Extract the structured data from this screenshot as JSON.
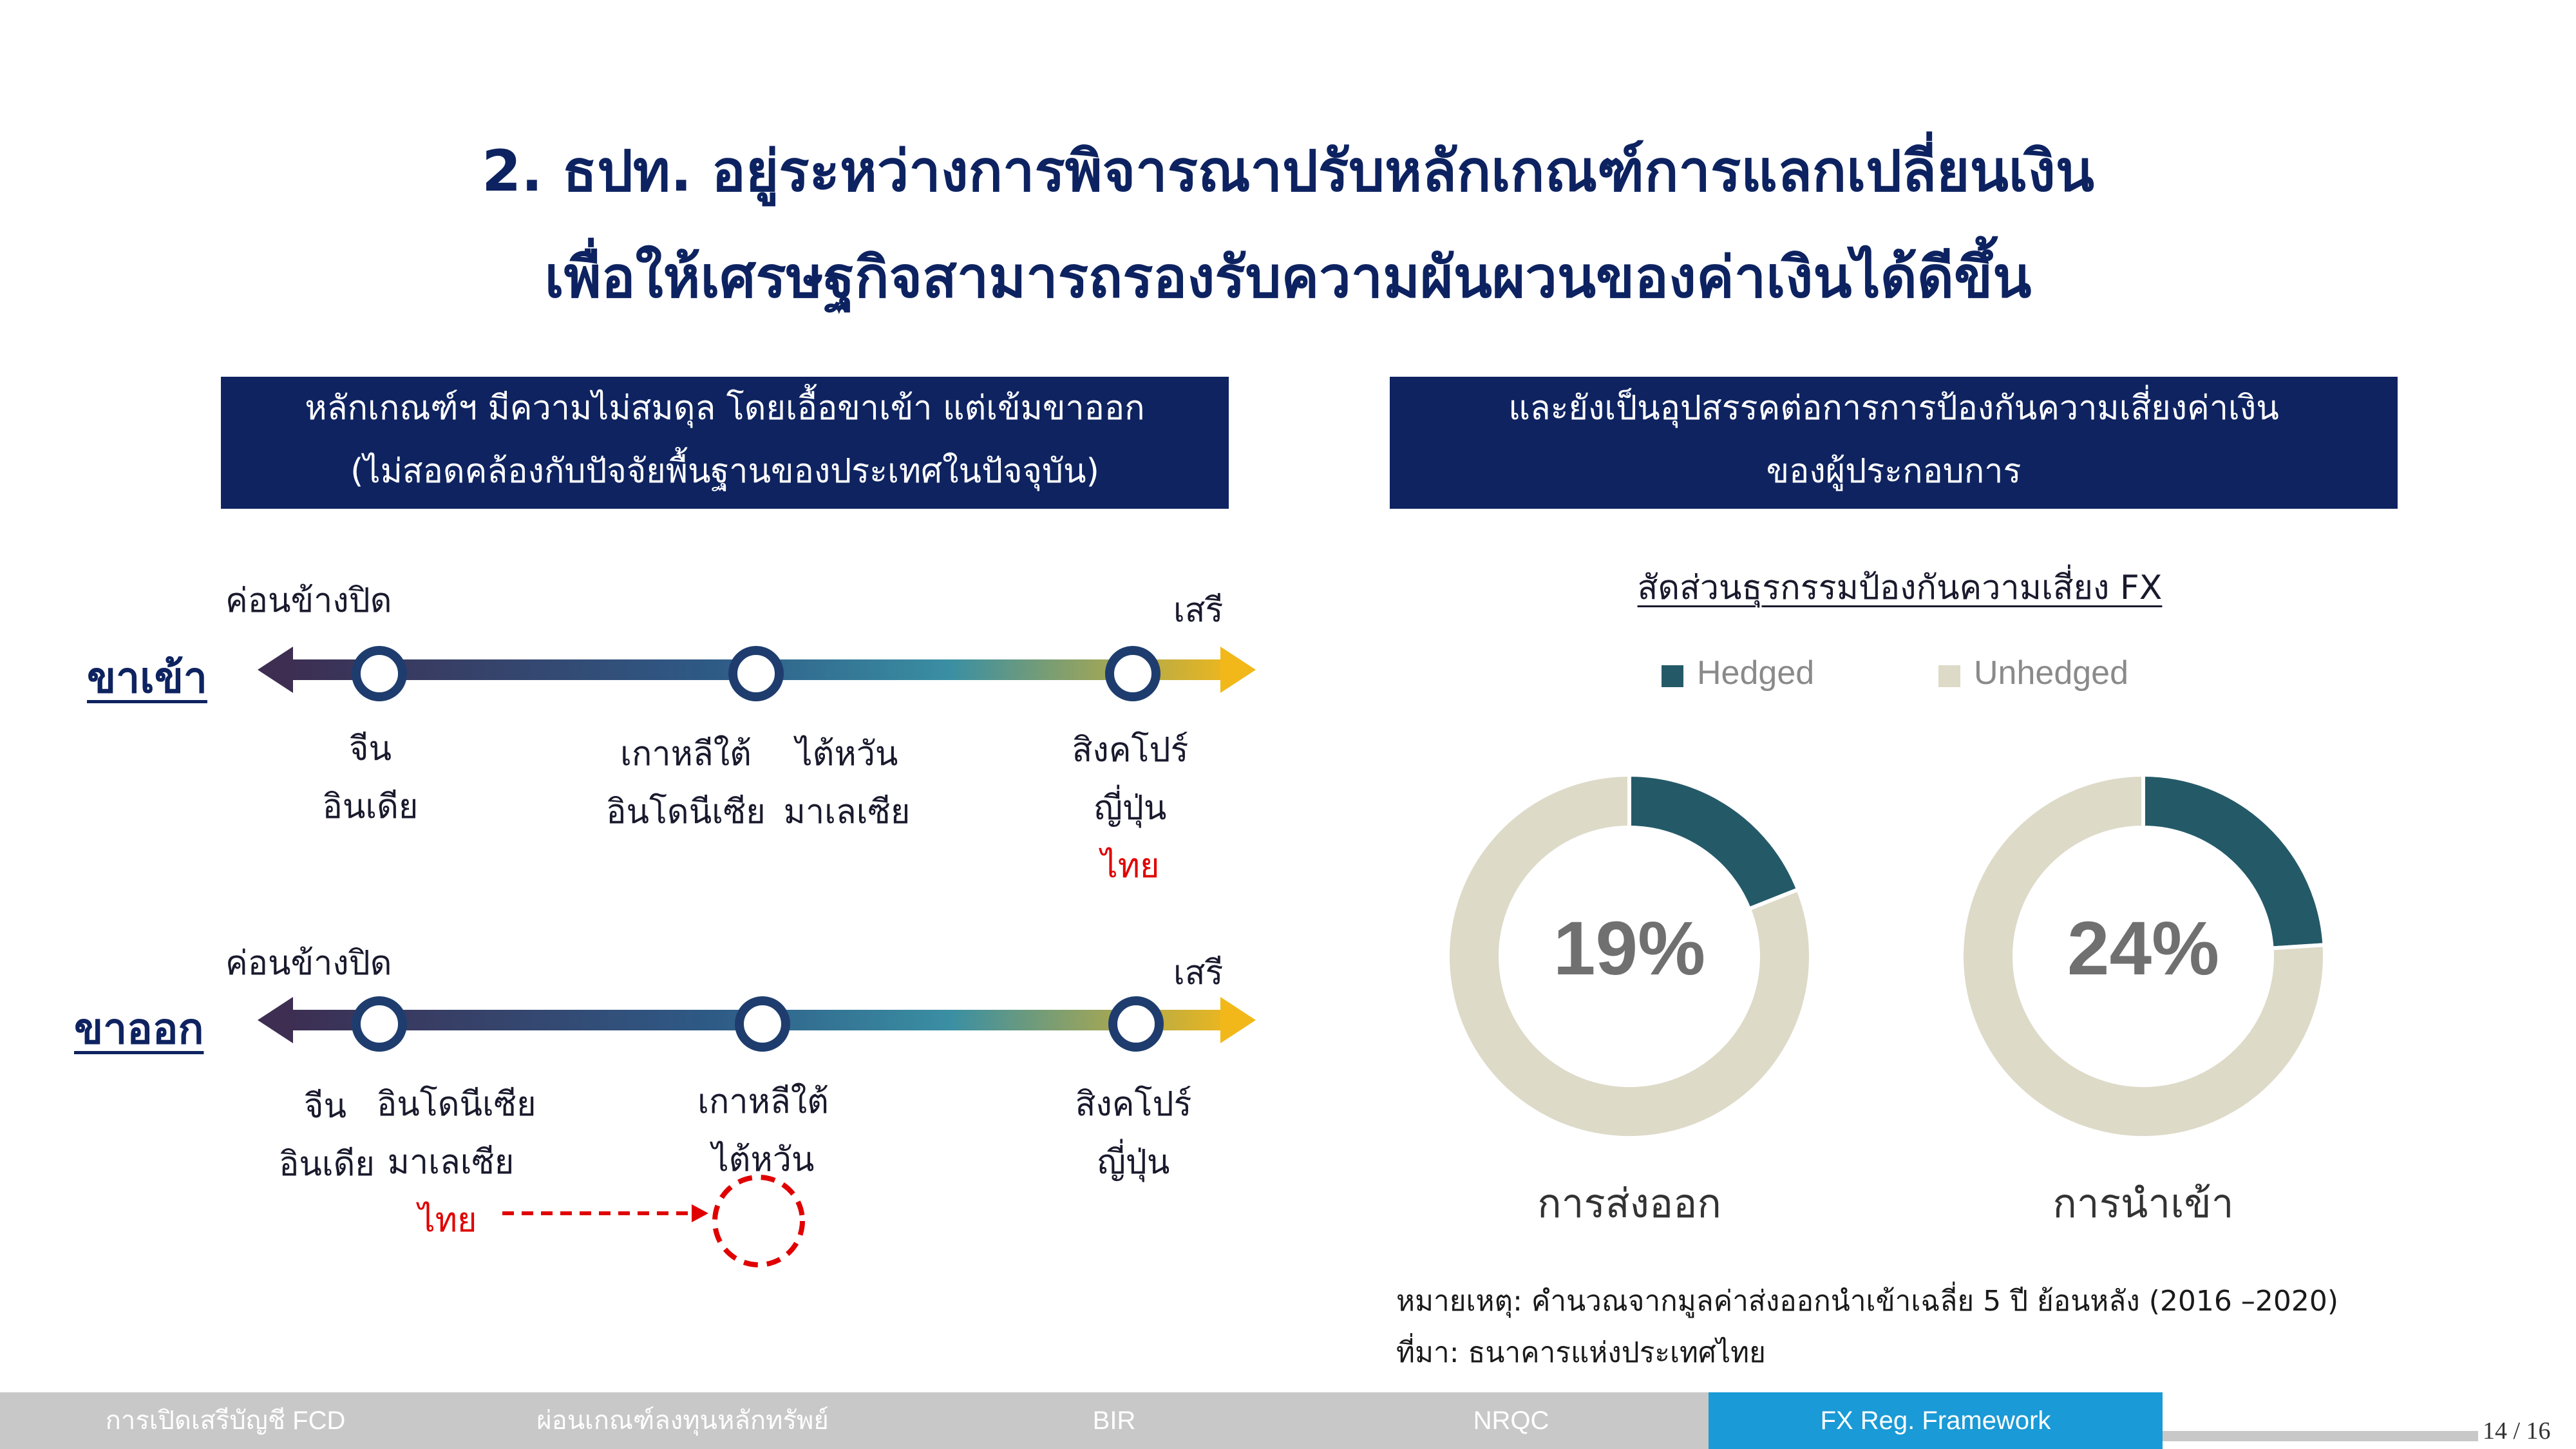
{
  "title": {
    "line1": "2. ธปท. อยู่ระหว่างการพิจารณาปรับหลักเกณฑ์การแลกเปลี่ยนเงิน",
    "line2": "เพื่อให้เศรษฐกิจสามารถรองรับความผันผวนของค่าเงินได้ดีขึ้น"
  },
  "left_box": {
    "line1": "หลักเกณฑ์ฯ มีความไม่สมดุล โดยเอื้อขาเข้า แต่เข้มขาออก",
    "line2": "(ไม่สอดคล้องกับปัจจัยพื้นฐานของประเทศในปัจจุบัน)"
  },
  "right_box": {
    "line1": "และยังเป็นอุปสรรคต่อการการป้องกันความเสี่ยงค่าเงิน",
    "line2": "ของผู้ประกอบการ"
  },
  "inflow": {
    "row_label": "ขาเข้า",
    "closed_label": "ค่อนข้างปิด",
    "free_label": "เสรี",
    "left": [
      "จีน",
      "อินเดีย"
    ],
    "mid_a": [
      "เกาหลีใต้",
      "อินโดนีเซีย"
    ],
    "mid_b": [
      "ไต้หวัน",
      "มาเลเซีย"
    ],
    "right": [
      "สิงคโปร์",
      "ญี่ปุ่น",
      "ไทย"
    ]
  },
  "outflow": {
    "row_label": "ขาออก",
    "closed_label": "ค่อนข้างปิด",
    "free_label": "เสรี",
    "left_a": [
      "จีน",
      "อินเดีย"
    ],
    "left_b": [
      "อินโดนีเซีย",
      "มาเลเซีย"
    ],
    "thai": "ไทย",
    "mid": [
      "เกาหลีใต้",
      "ไต้หวัน"
    ],
    "right": [
      "สิงคโปร์",
      "ญี่ปุ่น"
    ]
  },
  "chart_title": "สัดส่วนธุรกรรมป้องกันความเสี่ยง FX",
  "legend": {
    "hedged": "Hedged",
    "unhedged": "Unhedged",
    "hedged_color": "#245a68",
    "unhedged_color": "#dddac8"
  },
  "chart_data": {
    "type": "pie",
    "title": "สัดส่วนธุรกรรมป้องกันความเสี่ยง FX",
    "legend": [
      "Hedged",
      "Unhedged"
    ],
    "charts": [
      {
        "label": "การส่งออก",
        "center_text": "19%",
        "values": {
          "Hedged": 19,
          "Unhedged": 81
        }
      },
      {
        "label": "การนำเข้า",
        "center_text": "24%",
        "values": {
          "Hedged": 24,
          "Unhedged": 76
        }
      }
    ]
  },
  "notes": {
    "note": "หมายเหตุ: คำนวณจากมูลค่าส่งออกนำเข้าเฉลี่ย 5 ปี ย้อนหลัง (2016 –2020)",
    "source": "ที่มา: ธนาคารแห่งประเทศไทย"
  },
  "nav": {
    "items": [
      "การเปิดเสรีบัญชี FCD",
      "ผ่อนเกณฑ์ลงทุนหลักทรัพย์",
      "BIR",
      "NRQC",
      "FX Reg. Framework"
    ],
    "active_index": 4,
    "active_color": "#1a9ad6",
    "bar_color": "#c8c8c8"
  },
  "page_number": "14 / 16"
}
